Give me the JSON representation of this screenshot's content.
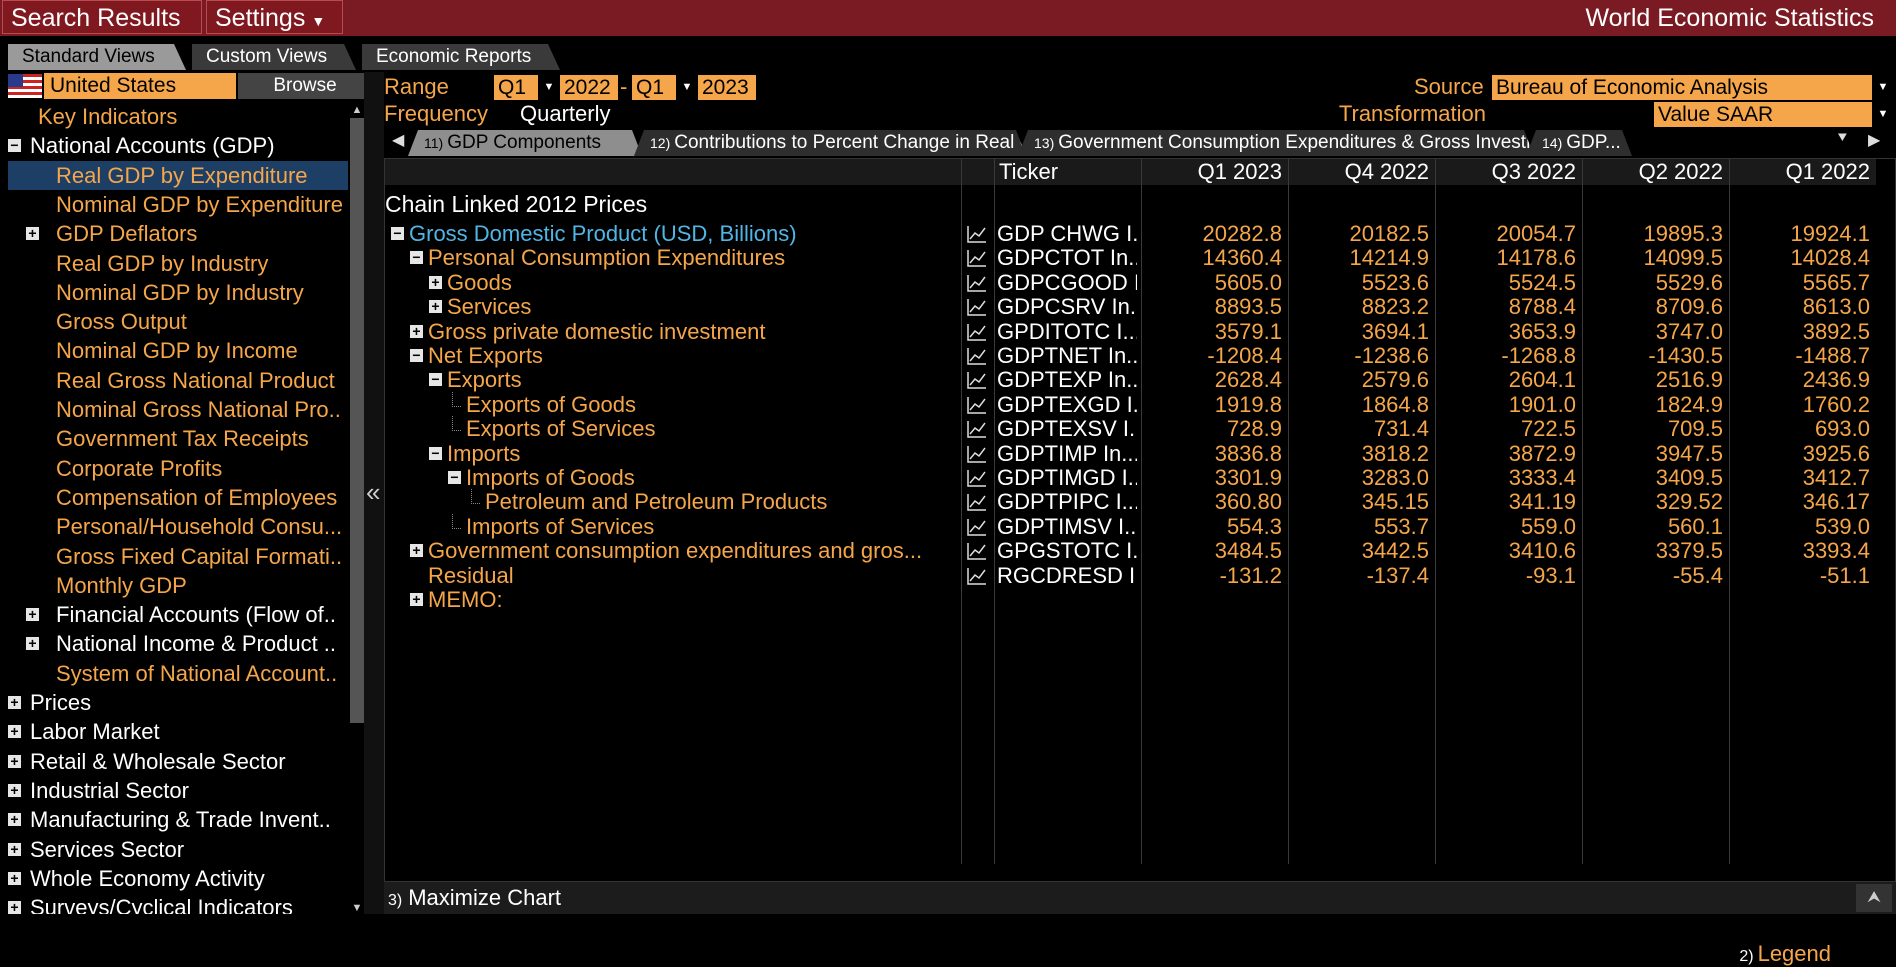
{
  "topbar": {
    "search_results": "Search Results",
    "settings": "Settings",
    "title": "World Economic Statistics"
  },
  "view_tabs": [
    "Standard Views",
    "Custom Views",
    "Economic Reports"
  ],
  "country": {
    "name": "United States",
    "browse": "Browse"
  },
  "tree": [
    {
      "label": "Key Indicators",
      "level": 1,
      "color": "orange",
      "pm": ""
    },
    {
      "label": "National Accounts (GDP)",
      "level": 0,
      "color": "white",
      "pm": "minus"
    },
    {
      "label": "Real GDP by Expenditure",
      "level": 2,
      "color": "orange",
      "pm": "",
      "selected": true
    },
    {
      "label": "Nominal GDP by Expenditure",
      "level": 2,
      "color": "orange",
      "pm": ""
    },
    {
      "label": "GDP Deflators",
      "level": 1,
      "color": "orange",
      "pm": "plus"
    },
    {
      "label": "Real GDP by Industry",
      "level": 2,
      "color": "orange",
      "pm": ""
    },
    {
      "label": "Nominal GDP by Industry",
      "level": 2,
      "color": "orange",
      "pm": ""
    },
    {
      "label": "Gross Output",
      "level": 2,
      "color": "orange",
      "pm": ""
    },
    {
      "label": "Nominal GDP by Income",
      "level": 2,
      "color": "orange",
      "pm": ""
    },
    {
      "label": "Real Gross National Product",
      "level": 2,
      "color": "orange",
      "pm": ""
    },
    {
      "label": "Nominal Gross National Pro..",
      "level": 2,
      "color": "orange",
      "pm": ""
    },
    {
      "label": "Government Tax Receipts",
      "level": 2,
      "color": "orange",
      "pm": ""
    },
    {
      "label": "Corporate Profits",
      "level": 2,
      "color": "orange",
      "pm": ""
    },
    {
      "label": "Compensation of Employees",
      "level": 2,
      "color": "orange",
      "pm": ""
    },
    {
      "label": "Personal/Household Consu...",
      "level": 2,
      "color": "orange",
      "pm": ""
    },
    {
      "label": "Gross Fixed Capital Formati..",
      "level": 2,
      "color": "orange",
      "pm": ""
    },
    {
      "label": "Monthly GDP",
      "level": 2,
      "color": "orange",
      "pm": ""
    },
    {
      "label": "Financial Accounts (Flow of..",
      "level": 1,
      "color": "white",
      "pm": "plus"
    },
    {
      "label": "National Income & Product ..",
      "level": 1,
      "color": "white",
      "pm": "plus"
    },
    {
      "label": "System of National Account..",
      "level": 2,
      "color": "orange",
      "pm": ""
    },
    {
      "label": "Prices",
      "level": 0,
      "color": "white",
      "pm": "plus"
    },
    {
      "label": "Labor Market",
      "level": 0,
      "color": "white",
      "pm": "plus"
    },
    {
      "label": "Retail & Wholesale Sector",
      "level": 0,
      "color": "white",
      "pm": "plus"
    },
    {
      "label": "Industrial Sector",
      "level": 0,
      "color": "white",
      "pm": "plus"
    },
    {
      "label": "Manufacturing & Trade Invent..",
      "level": 0,
      "color": "white",
      "pm": "plus"
    },
    {
      "label": "Services Sector",
      "level": 0,
      "color": "white",
      "pm": "plus"
    },
    {
      "label": "Whole Economy Activity",
      "level": 0,
      "color": "white",
      "pm": "plus"
    },
    {
      "label": "Surveys/Cyclical Indicators",
      "level": 0,
      "color": "white",
      "pm": "plus"
    }
  ],
  "controls": {
    "range_label": "Range",
    "range_from_q": "Q1",
    "range_from_y": "2022",
    "range_dash": "-",
    "range_to_q": "Q1",
    "range_to_y": "2023",
    "frequency_label": "Frequency",
    "frequency_value": "Quarterly",
    "source_label": "Source",
    "source_value": "Bureau of Economic Analysis",
    "transformation_label": "Transformation",
    "transformation_value": "Value SAAR"
  },
  "sub_tabs": [
    {
      "num": "11)",
      "label": "GDP Components"
    },
    {
      "num": "12)",
      "label": "Contributions to Percent Change in Real GDP"
    },
    {
      "num": "13)",
      "label": "Government Consumption Expenditures & Gross Investment"
    },
    {
      "num": "14)",
      "label": "GDP..."
    }
  ],
  "table": {
    "ticker_header": "Ticker",
    "columns": [
      "Q1 2023",
      "Q4 2022",
      "Q3 2022",
      "Q2 2022",
      "Q1 2022"
    ],
    "section_title": "Chain Linked 2012 Prices",
    "rows": [
      {
        "label": "Gross Domestic Product (USD, Billions)",
        "level": 0,
        "pm": "minus",
        "color": "blue",
        "ticker": "GDP CHWG I...",
        "values": [
          "20282.8",
          "20182.5",
          "20054.7",
          "19895.3",
          "19924.1"
        ]
      },
      {
        "label": "Personal Consumption Expenditures",
        "level": 1,
        "pm": "minus",
        "color": "orange",
        "ticker": "GDPCTOT In...",
        "values": [
          "14360.4",
          "14214.9",
          "14178.6",
          "14099.5",
          "14028.4"
        ]
      },
      {
        "label": "Goods",
        "level": 2,
        "pm": "plus",
        "color": "orange",
        "ticker": "GDPCGOOD I...",
        "values": [
          "5605.0",
          "5523.6",
          "5524.5",
          "5529.6",
          "5565.7"
        ]
      },
      {
        "label": "Services",
        "level": 2,
        "pm": "plus",
        "color": "orange",
        "ticker": "GDPCSRV In...",
        "values": [
          "8893.5",
          "8823.2",
          "8788.4",
          "8709.6",
          "8613.0"
        ]
      },
      {
        "label": "Gross private domestic investment",
        "level": 1,
        "pm": "plus",
        "color": "orange",
        "ticker": "GPDITOTC I...",
        "values": [
          "3579.1",
          "3694.1",
          "3653.9",
          "3747.0",
          "3892.5"
        ]
      },
      {
        "label": "Net Exports",
        "level": 1,
        "pm": "minus",
        "color": "orange",
        "ticker": "GDPTNET In...",
        "values": [
          "-1208.4",
          "-1238.6",
          "-1268.8",
          "-1430.5",
          "-1488.7"
        ]
      },
      {
        "label": "Exports",
        "level": 2,
        "pm": "minus",
        "color": "orange",
        "ticker": "GDPTEXP In...",
        "values": [
          "2628.4",
          "2579.6",
          "2604.1",
          "2516.9",
          "2436.9"
        ]
      },
      {
        "label": "Exports of Goods",
        "level": 3,
        "pm": "",
        "color": "orange",
        "ticker": "GDPTEXGD I...",
        "values": [
          "1919.8",
          "1864.8",
          "1901.0",
          "1824.9",
          "1760.2"
        ]
      },
      {
        "label": "Exports of Services",
        "level": 3,
        "pm": "",
        "color": "orange",
        "ticker": "GDPTEXSV I...",
        "values": [
          "728.9",
          "731.4",
          "722.5",
          "709.5",
          "693.0"
        ]
      },
      {
        "label": "Imports",
        "level": 2,
        "pm": "minus",
        "color": "orange",
        "ticker": "GDPTIMP In...",
        "values": [
          "3836.8",
          "3818.2",
          "3872.9",
          "3947.5",
          "3925.6"
        ]
      },
      {
        "label": "Imports of Goods",
        "level": 3,
        "pm": "minus",
        "color": "orange",
        "ticker": "GDPTIMGD I...",
        "values": [
          "3301.9",
          "3283.0",
          "3333.4",
          "3409.5",
          "3412.7"
        ]
      },
      {
        "label": "Petroleum and Petroleum Products",
        "level": 4,
        "pm": "",
        "color": "orange",
        "ticker": "GDPTPIPC I...",
        "values": [
          "360.80",
          "345.15",
          "341.19",
          "329.52",
          "346.17"
        ]
      },
      {
        "label": "Imports of Services",
        "level": 3,
        "pm": "",
        "color": "orange",
        "ticker": "GDPTIMSV I...",
        "values": [
          "554.3",
          "553.7",
          "559.0",
          "560.1",
          "539.0"
        ]
      },
      {
        "label": "Government consumption expenditures and gros...",
        "level": 1,
        "pm": "plus",
        "color": "orange",
        "ticker": "GPGSTOTC I...",
        "values": [
          "3484.5",
          "3442.5",
          "3410.6",
          "3379.5",
          "3393.4"
        ]
      },
      {
        "label": "Residual",
        "level": 1,
        "pm": "",
        "color": "orange",
        "ticker": "RGCDRESD I...",
        "values": [
          "-131.2",
          "-137.4",
          "-93.1",
          "-55.4",
          "-51.1"
        ]
      },
      {
        "label": "MEMO:",
        "level": 1,
        "pm": "plus",
        "color": "orange",
        "ticker": "",
        "values": [
          "",
          "",
          "",
          "",
          ""
        ]
      }
    ]
  },
  "legend": {
    "num": "2)",
    "label": "Legend"
  },
  "bottom": {
    "num": "3)",
    "label": "Maximize Chart"
  }
}
